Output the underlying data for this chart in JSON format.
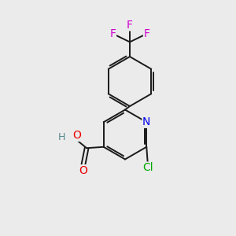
{
  "background_color": "#ebebeb",
  "bond_color": "#1a1a1a",
  "bond_width": 1.4,
  "atom_colors": {
    "F": "#cc00cc",
    "O": "#ee0000",
    "N": "#0000ee",
    "Cl": "#00aa00",
    "H": "#558888",
    "C": "#1a1a1a"
  },
  "font_size": 10,
  "figsize": [
    3.0,
    3.0
  ],
  "dpi": 100
}
